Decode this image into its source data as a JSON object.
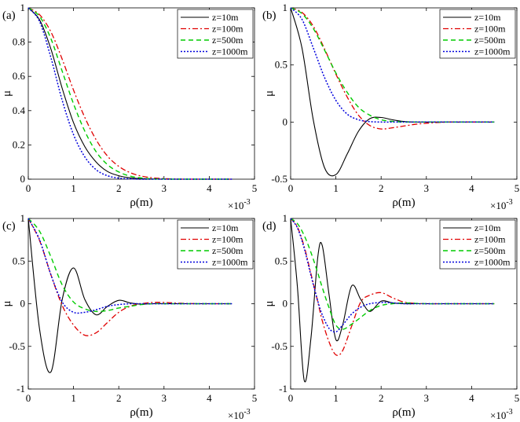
{
  "chart_data": [
    {
      "type": "line",
      "panel": "(a)",
      "xlabel": "ρ(m)",
      "ylabel": "μ",
      "x_exponent": "×10",
      "x_exponent_power": "-3",
      "xlim": [
        0,
        5
      ],
      "ylim": [
        0,
        1
      ],
      "xticks": [
        0,
        1,
        2,
        3,
        4,
        5
      ],
      "yticks": [
        0,
        0.2,
        0.4,
        0.6,
        0.8,
        1
      ],
      "ytick_labels": [
        "0",
        "0.2",
        "0.4",
        "0.6",
        "0.8",
        "1"
      ],
      "x": [
        0,
        0.25,
        0.5,
        0.75,
        1,
        1.25,
        1.5,
        1.75,
        2,
        2.25,
        2.5,
        2.75,
        3,
        3.25,
        3.5,
        3.75,
        4,
        4.25,
        4.5
      ],
      "series": [
        {
          "name": "z=10m",
          "values": [
            1,
            0.93,
            0.76,
            0.53,
            0.33,
            0.19,
            0.1,
            0.045,
            0.02,
            0.008,
            0.003,
            0.001,
            0,
            0,
            0,
            0,
            0,
            0,
            0
          ]
        },
        {
          "name": "z=100m",
          "values": [
            1,
            0.96,
            0.86,
            0.7,
            0.52,
            0.36,
            0.23,
            0.135,
            0.075,
            0.038,
            0.018,
            0.008,
            0.003,
            0.001,
            0,
            0,
            0,
            0,
            0
          ]
        },
        {
          "name": "z=500m",
          "values": [
            1,
            0.95,
            0.82,
            0.63,
            0.44,
            0.28,
            0.16,
            0.085,
            0.042,
            0.018,
            0.007,
            0.002,
            0.001,
            0,
            0,
            0,
            0,
            0,
            0
          ]
        },
        {
          "name": "z=1000m",
          "values": [
            1,
            0.92,
            0.71,
            0.46,
            0.26,
            0.13,
            0.055,
            0.02,
            0.006,
            0.002,
            0,
            0,
            0,
            0,
            0,
            0,
            0,
            0,
            0
          ]
        }
      ]
    },
    {
      "type": "line",
      "panel": "(b)",
      "xlabel": "ρ(m)",
      "ylabel": "μ",
      "x_exponent": "×10",
      "x_exponent_power": "-3",
      "xlim": [
        0,
        5
      ],
      "ylim": [
        -0.5,
        1
      ],
      "xticks": [
        0,
        1,
        2,
        3,
        4,
        5
      ],
      "yticks": [
        -0.5,
        0,
        0.5,
        1
      ],
      "ytick_labels": [
        "-0.5",
        "0",
        "0.5",
        "1"
      ],
      "x": [
        0,
        0.25,
        0.5,
        0.75,
        1,
        1.25,
        1.5,
        1.75,
        2,
        2.25,
        2.5,
        2.75,
        3,
        3.25,
        3.5,
        3.75,
        4,
        4.25,
        4.5
      ],
      "series": [
        {
          "name": "z=10m",
          "values": [
            1,
            0.65,
            0.02,
            -0.4,
            -0.46,
            -0.28,
            -0.08,
            0.03,
            0.04,
            0.02,
            0.005,
            0,
            0,
            0,
            0,
            0,
            0,
            0,
            0
          ]
        },
        {
          "name": "z=100m",
          "values": [
            1,
            0.96,
            0.84,
            0.64,
            0.42,
            0.22,
            0.06,
            -0.03,
            -0.06,
            -0.05,
            -0.035,
            -0.02,
            -0.01,
            -0.004,
            0,
            0,
            0,
            0,
            0
          ]
        },
        {
          "name": "z=500m",
          "values": [
            1,
            0.95,
            0.82,
            0.63,
            0.43,
            0.26,
            0.13,
            0.06,
            0.02,
            0.006,
            0.001,
            0,
            0,
            0,
            0,
            0,
            0,
            0,
            0
          ]
        },
        {
          "name": "z=1000m",
          "values": [
            1,
            0.9,
            0.65,
            0.39,
            0.19,
            0.07,
            0.02,
            0.004,
            0,
            0,
            0,
            0,
            0,
            0,
            0,
            0,
            0,
            0,
            0
          ]
        }
      ]
    },
    {
      "type": "line",
      "panel": "(c)",
      "xlabel": "ρ(m)",
      "ylabel": "μ",
      "x_exponent": "×10",
      "x_exponent_power": "-3",
      "xlim": [
        0,
        5
      ],
      "ylim": [
        -1,
        1
      ],
      "xticks": [
        0,
        1,
        2,
        3,
        4,
        5
      ],
      "yticks": [
        -1,
        -0.5,
        0,
        0.5,
        1
      ],
      "ytick_labels": [
        "-1",
        "-0.5",
        "0",
        "0.5",
        "1"
      ],
      "x": [
        0,
        0.25,
        0.5,
        0.75,
        1,
        1.25,
        1.5,
        1.75,
        2,
        2.25,
        2.5,
        2.75,
        3,
        3.25,
        3.5,
        3.75,
        4,
        4.25,
        4.5
      ],
      "series": [
        {
          "name": "z=10m",
          "values": [
            1,
            -0.3,
            -0.8,
            0.05,
            0.42,
            0.05,
            -0.13,
            -0.03,
            0.04,
            0.01,
            -0.005,
            0,
            0,
            0,
            0,
            0,
            0,
            0,
            0
          ]
        },
        {
          "name": "z=100m",
          "values": [
            1,
            0.74,
            0.34,
            -0.02,
            -0.25,
            -0.37,
            -0.34,
            -0.22,
            -0.1,
            -0.03,
            0,
            0.015,
            0.015,
            0.008,
            0.003,
            0,
            0,
            0,
            0
          ]
        },
        {
          "name": "z=500m",
          "values": [
            1,
            0.85,
            0.55,
            0.22,
            0.02,
            -0.06,
            -0.09,
            -0.08,
            -0.05,
            -0.03,
            -0.01,
            0,
            0,
            0,
            0,
            0,
            0,
            0,
            0
          ]
        },
        {
          "name": "z=1000m",
          "values": [
            1,
            0.75,
            0.34,
            0.02,
            -0.1,
            -0.1,
            -0.07,
            -0.03,
            -0.01,
            0,
            0,
            0,
            0,
            0,
            0,
            0,
            0,
            0,
            0
          ]
        }
      ]
    },
    {
      "type": "line",
      "panel": "(d)",
      "xlabel": "ρ(m)",
      "ylabel": "μ",
      "x_exponent": "×10",
      "x_exponent_power": "-3",
      "xlim": [
        0,
        5
      ],
      "ylim": [
        -1,
        1
      ],
      "xticks": [
        0,
        1,
        2,
        3,
        4,
        5
      ],
      "yticks": [
        -1,
        -0.5,
        0,
        0.5,
        1
      ],
      "ytick_labels": [
        "-1",
        "-0.5",
        "0",
        "0.5",
        "1"
      ],
      "x": [
        0,
        0.15,
        0.3,
        0.45,
        0.6,
        0.7,
        0.85,
        1,
        1.15,
        1.35,
        1.55,
        1.75,
        2,
        2.25,
        2.5,
        2.75,
        3,
        3.5,
        4,
        4.5
      ],
      "series": [
        {
          "name": "z=10m",
          "values": [
            1,
            0.2,
            -0.9,
            -0.4,
            0.55,
            0.68,
            0.1,
            -0.42,
            -0.25,
            0.21,
            0.05,
            -0.09,
            0.03,
            0.01,
            0,
            0,
            0,
            0,
            0,
            0
          ]
        },
        {
          "name": "z=100m",
          "values": [
            1,
            0.9,
            0.67,
            0.35,
            0.02,
            -0.2,
            -0.45,
            -0.6,
            -0.55,
            -0.26,
            0.02,
            0.1,
            0.13,
            0.07,
            0.02,
            0.005,
            0,
            0,
            0,
            0
          ]
        },
        {
          "name": "z=500m",
          "values": [
            1,
            0.94,
            0.8,
            0.6,
            0.36,
            0.19,
            -0.05,
            -0.25,
            -0.3,
            -0.24,
            -0.16,
            -0.08,
            -0.02,
            0,
            0.01,
            0.005,
            0,
            0,
            0,
            0
          ]
        },
        {
          "name": "z=1000m",
          "values": [
            1,
            0.89,
            0.65,
            0.33,
            0.03,
            -0.13,
            -0.29,
            -0.33,
            -0.25,
            -0.12,
            -0.04,
            0,
            0.015,
            0.01,
            0,
            0,
            0,
            0,
            0,
            0
          ]
        }
      ]
    }
  ],
  "legend_entries": [
    "z=10m",
    "z=100m",
    "z=500m",
    "z=1000m"
  ],
  "series_colors": [
    "#000000",
    "#e00000",
    "#00cc00",
    "#0000dd"
  ]
}
